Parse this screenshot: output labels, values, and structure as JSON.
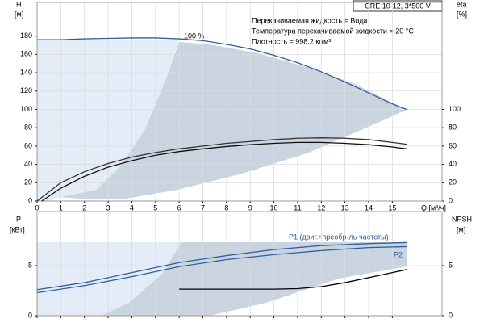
{
  "chart_data": [
    {
      "type": "line",
      "title": "CRE 10-12, 3*500 V",
      "annotations": [
        "Перекачиваемая жидкость = Вода",
        "Температура перекачиваемой жидкости = 20 °C",
        "Плотность = 998.2 кг/м³"
      ],
      "curve_label": "100 %",
      "xlabel": "Q [м³/ч]",
      "ylabel": "H",
      "yunit": "[м]",
      "y2label": "eta",
      "y2unit": "[%]",
      "xlim": [
        0,
        17.1
      ],
      "xticks": [
        0,
        1,
        2,
        3,
        4,
        5,
        6,
        7,
        8,
        9,
        10,
        11,
        12,
        13,
        14,
        15
      ],
      "ylim": [
        0,
        216.7
      ],
      "yticks": [
        0,
        20,
        40,
        60,
        80,
        100,
        120,
        140,
        160,
        180
      ],
      "y2lim": [
        0,
        216.7
      ],
      "y2ticks": [
        0,
        20,
        40,
        60,
        80,
        100
      ],
      "grid": true,
      "series": [
        {
          "color": "#2f5f9e",
          "x": [
            0,
            1,
            2,
            3,
            4,
            5,
            6,
            7,
            8,
            9,
            10,
            11,
            12,
            13,
            14,
            15,
            15.6
          ],
          "values": [
            176,
            176,
            177,
            177.5,
            178,
            178,
            177,
            175,
            171,
            166,
            159,
            151,
            141,
            130,
            118,
            106,
            100
          ]
        },
        {
          "color": "#333333",
          "axis": "y2",
          "x": [
            0,
            1,
            2,
            3,
            4,
            5,
            6,
            7,
            8,
            9,
            10,
            11,
            12,
            13,
            14,
            15,
            15.6
          ],
          "values": [
            0,
            20,
            32,
            41,
            48,
            53,
            57,
            60,
            63,
            65,
            67,
            68.5,
            69,
            68.5,
            67,
            64,
            62
          ]
        },
        {
          "color": "#111111",
          "axis": "y2",
          "x": [
            0.2,
            1,
            2,
            3,
            4,
            5,
            6,
            7,
            8,
            9,
            10,
            11,
            12,
            13,
            14,
            15,
            15.6
          ],
          "values": [
            0,
            14,
            27,
            37,
            44,
            50,
            54,
            57,
            59.5,
            61.5,
            63,
            64,
            64,
            63,
            61.5,
            59,
            57
          ]
        }
      ]
    },
    {
      "type": "line",
      "ylabel": "P",
      "yunit": "[кВт]",
      "y2label": "NPSH",
      "y2unit": "[м]",
      "xlim": [
        0,
        17.1
      ],
      "xticks": [
        0,
        1,
        2,
        3,
        4,
        5,
        6,
        7,
        8,
        9,
        10,
        11,
        12,
        13,
        14,
        15
      ],
      "ylim": [
        0,
        10.4
      ],
      "yticks": [
        0,
        5
      ],
      "y2lim": [
        0,
        10.4
      ],
      "y2ticks": [
        0,
        5
      ],
      "grid": true,
      "series": [
        {
          "name": "P1 (двиг.+преобр-ль частоты)",
          "color": "#2f5f9e",
          "x": [
            0,
            2,
            4,
            6,
            8,
            10,
            12,
            14,
            15.6
          ],
          "values": [
            2.6,
            3.3,
            4.3,
            5.3,
            6.0,
            6.6,
            7.0,
            7.2,
            7.3
          ]
        },
        {
          "name": "P2",
          "color": "#2f5f9e",
          "x": [
            0,
            2,
            4,
            6,
            8,
            10,
            12,
            14,
            15.6
          ],
          "values": [
            2.3,
            3.0,
            3.9,
            4.9,
            5.6,
            6.1,
            6.5,
            6.8,
            6.9
          ]
        },
        {
          "color": "#000000",
          "axis": "y2",
          "x": [
            6,
            8,
            10,
            11,
            12,
            13,
            14,
            15,
            15.6
          ],
          "values": [
            2.65,
            2.65,
            2.65,
            2.7,
            2.9,
            3.3,
            3.8,
            4.3,
            4.6
          ]
        }
      ]
    }
  ]
}
